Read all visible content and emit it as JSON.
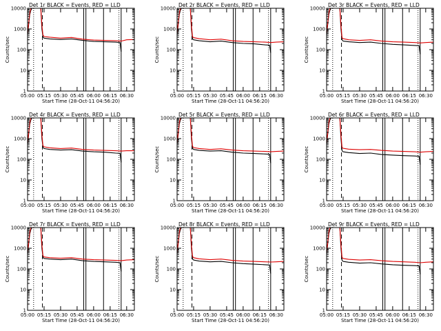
{
  "chart_data": {
    "common": {
      "type": "line",
      "yscale": "log",
      "ylim": [
        1,
        10000
      ],
      "y_ticks": [
        1,
        10,
        100,
        1000,
        10000
      ],
      "y_tick_labels": [
        "1",
        "10",
        "100",
        "1000",
        "10000"
      ],
      "ylabel": "Counts/sec",
      "xlabel": "Start Time (28-Oct-11 04:56:20)",
      "xlim_minutes": [
        0,
        97
      ],
      "x_ticks_minutes": [
        0,
        15,
        30,
        45,
        60,
        75,
        90
      ],
      "x_tick_labels": [
        "05:00",
        "05:15",
        "05:30",
        "05:45",
        "06:00",
        "06:15",
        "06:30"
      ],
      "vlines": [
        {
          "at": 5.5,
          "style": "dotted"
        },
        {
          "at": 13.5,
          "style": "dashed"
        },
        {
          "at": 51,
          "style": "solid"
        },
        {
          "at": 53,
          "style": "solid"
        },
        {
          "at": 69,
          "style": "solid"
        },
        {
          "at": 83,
          "style": "dotted"
        },
        {
          "at": 85,
          "style": "solid"
        }
      ],
      "series_colors": {
        "events": "#000000",
        "lld": "#dd0000"
      }
    },
    "panels": [
      {
        "title": "Det 1r BLACK = Events, RED = LLD",
        "events_x": [
          0,
          2,
          3,
          4,
          12,
          13,
          14,
          15,
          20,
          30,
          40,
          50,
          60,
          70,
          80,
          84,
          85
        ],
        "events_y": [
          500,
          5000,
          8000,
          10000,
          10000,
          1000,
          400,
          360,
          330,
          310,
          330,
          280,
          250,
          240,
          230,
          220,
          80
        ],
        "lld_x": [
          0,
          2,
          3,
          4,
          12,
          13,
          14,
          15,
          20,
          30,
          40,
          50,
          60,
          70,
          80,
          85,
          90,
          97
        ],
        "lld_y": [
          600,
          6000,
          10000,
          10000,
          10000,
          1500,
          500,
          430,
          400,
          360,
          390,
          320,
          290,
          280,
          270,
          260,
          300,
          310
        ]
      },
      {
        "title": "Det 2r BLACK = Events, RED = LLD",
        "events_x": [
          0,
          2,
          3,
          4,
          12,
          13,
          14,
          15,
          20,
          30,
          40,
          50,
          60,
          70,
          80,
          84,
          85
        ],
        "events_y": [
          500,
          5000,
          8000,
          10000,
          10000,
          1000,
          330,
          300,
          270,
          240,
          260,
          220,
          200,
          190,
          170,
          165,
          70
        ],
        "lld_x": [
          0,
          2,
          3,
          4,
          12,
          13,
          14,
          15,
          20,
          30,
          40,
          50,
          60,
          70,
          80,
          85,
          90,
          97
        ],
        "lld_y": [
          600,
          6000,
          10000,
          10000,
          10000,
          1500,
          420,
          380,
          340,
          300,
          320,
          270,
          250,
          240,
          230,
          220,
          230,
          240
        ]
      },
      {
        "title": "Det 3r BLACK = Events, RED = LLD",
        "events_x": [
          0,
          2,
          3,
          4,
          12,
          13,
          14,
          15,
          20,
          30,
          40,
          50,
          60,
          70,
          80,
          84,
          85
        ],
        "events_y": [
          500,
          5000,
          8000,
          10000,
          10000,
          1000,
          300,
          260,
          240,
          220,
          230,
          200,
          180,
          170,
          160,
          155,
          60
        ],
        "lld_x": [
          0,
          2,
          3,
          4,
          12,
          13,
          14,
          15,
          20,
          30,
          40,
          50,
          60,
          70,
          80,
          85,
          90,
          97
        ],
        "lld_y": [
          600,
          6000,
          10000,
          10000,
          10000,
          1500,
          380,
          340,
          300,
          280,
          300,
          260,
          240,
          230,
          220,
          210,
          220,
          230
        ]
      },
      {
        "title": "Det 4r BLACK = Events, RED = LLD",
        "events_x": [
          0,
          2,
          3,
          4,
          12,
          13,
          14,
          15,
          20,
          30,
          40,
          50,
          60,
          70,
          80,
          84,
          85
        ],
        "events_y": [
          500,
          5000,
          8000,
          10000,
          10000,
          1000,
          380,
          330,
          300,
          280,
          290,
          250,
          230,
          220,
          200,
          195,
          70
        ],
        "lld_x": [
          0,
          2,
          3,
          4,
          12,
          13,
          14,
          15,
          20,
          30,
          40,
          50,
          60,
          70,
          80,
          85,
          90,
          97
        ],
        "lld_y": [
          600,
          6000,
          10000,
          10000,
          10000,
          1500,
          450,
          400,
          360,
          330,
          350,
          300,
          280,
          270,
          260,
          250,
          260,
          260
        ]
      },
      {
        "title": "Det 5r BLACK = Events, RED = LLD",
        "events_x": [
          0,
          2,
          3,
          4,
          12,
          13,
          14,
          15,
          20,
          30,
          40,
          50,
          60,
          70,
          80,
          84,
          85
        ],
        "events_y": [
          500,
          5000,
          8000,
          10000,
          10000,
          1000,
          340,
          300,
          270,
          250,
          260,
          220,
          200,
          190,
          180,
          175,
          65
        ],
        "lld_x": [
          0,
          2,
          3,
          4,
          12,
          13,
          14,
          15,
          20,
          30,
          40,
          50,
          60,
          70,
          80,
          85,
          90,
          97
        ],
        "lld_y": [
          600,
          6000,
          10000,
          10000,
          10000,
          1500,
          420,
          370,
          330,
          300,
          320,
          280,
          260,
          250,
          240,
          230,
          240,
          250
        ]
      },
      {
        "title": "Det 6r BLACK = Events, RED = LLD",
        "events_x": [
          0,
          2,
          3,
          4,
          12,
          13,
          14,
          15,
          20,
          30,
          40,
          50,
          60,
          70,
          80,
          84,
          85
        ],
        "events_y": [
          500,
          5000,
          8000,
          10000,
          10000,
          1000,
          260,
          230,
          210,
          190,
          200,
          170,
          160,
          150,
          145,
          140,
          55
        ],
        "lld_x": [
          0,
          2,
          3,
          4,
          12,
          13,
          14,
          15,
          20,
          30,
          40,
          50,
          60,
          70,
          80,
          85,
          90,
          97
        ],
        "lld_y": [
          600,
          6000,
          10000,
          10000,
          10000,
          1500,
          380,
          340,
          310,
          290,
          300,
          270,
          250,
          240,
          230,
          220,
          230,
          240
        ]
      },
      {
        "title": "Det 7r BLACK = Events, RED = LLD",
        "events_x": [
          0,
          2,
          3,
          4,
          12,
          13,
          14,
          15,
          20,
          30,
          40,
          50,
          60,
          70,
          80,
          84,
          85
        ],
        "events_y": [
          500,
          5000,
          8000,
          10000,
          10000,
          1000,
          360,
          320,
          300,
          280,
          300,
          250,
          230,
          220,
          210,
          200,
          75
        ],
        "lld_x": [
          0,
          2,
          3,
          4,
          12,
          13,
          14,
          15,
          20,
          30,
          40,
          50,
          60,
          70,
          80,
          85,
          90,
          97
        ],
        "lld_y": [
          600,
          6000,
          10000,
          10000,
          10000,
          1500,
          430,
          380,
          350,
          330,
          350,
          300,
          280,
          270,
          260,
          250,
          270,
          280
        ]
      },
      {
        "title": "Det 8r BLACK = Events, RED = LLD",
        "events_x": [
          0,
          2,
          3,
          4,
          12,
          13,
          14,
          15,
          20,
          30,
          40,
          50,
          60,
          70,
          80,
          84,
          85
        ],
        "events_y": [
          500,
          5000,
          8000,
          10000,
          10000,
          1000,
          300,
          270,
          240,
          220,
          230,
          200,
          180,
          170,
          160,
          155,
          60
        ],
        "lld_x": [
          0,
          2,
          3,
          4,
          12,
          13,
          14,
          15,
          20,
          30,
          40,
          50,
          60,
          70,
          80,
          85,
          90,
          97
        ],
        "lld_y": [
          600,
          6000,
          10000,
          10000,
          10000,
          1500,
          400,
          350,
          310,
          280,
          300,
          260,
          240,
          230,
          220,
          215,
          220,
          230
        ]
      },
      {
        "title": "Det 9r BLACK = Events, RED = LLD",
        "events_x": [
          0,
          2,
          3,
          4,
          12,
          13,
          14,
          15,
          20,
          30,
          40,
          50,
          60,
          70,
          80,
          84,
          85
        ],
        "events_y": [
          500,
          5000,
          8000,
          10000,
          10000,
          1000,
          260,
          230,
          210,
          190,
          200,
          175,
          160,
          150,
          145,
          140,
          55
        ],
        "lld_x": [
          0,
          2,
          3,
          4,
          12,
          13,
          14,
          15,
          20,
          30,
          40,
          50,
          60,
          70,
          80,
          85,
          90,
          97
        ],
        "lld_y": [
          600,
          6000,
          10000,
          10000,
          10000,
          1500,
          360,
          320,
          290,
          270,
          280,
          250,
          230,
          220,
          210,
          200,
          210,
          220
        ]
      }
    ]
  }
}
